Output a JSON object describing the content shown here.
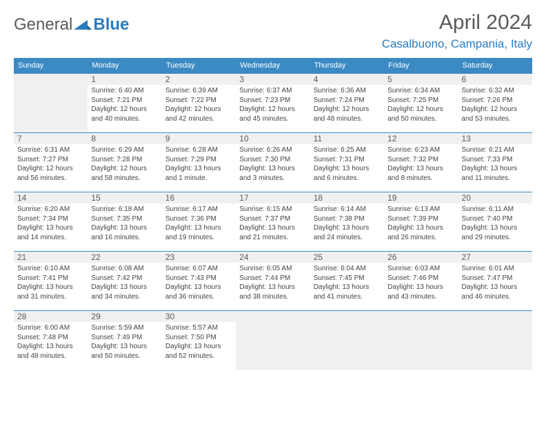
{
  "brand": {
    "part1": "General",
    "part2": "Blue"
  },
  "title": "April 2024",
  "location": "Casalbuono, Campania, Italy",
  "colors": {
    "header_bg": "#3b8ac4",
    "header_text": "#ffffff",
    "brand_gray": "#5a5a5a",
    "brand_blue": "#2b7bbf",
    "cell_border": "#3b8ac4",
    "empty_bg": "#f0f0f0",
    "text": "#444444"
  },
  "calendar": {
    "type": "table",
    "weekdays": [
      "Sunday",
      "Monday",
      "Tuesday",
      "Wednesday",
      "Thursday",
      "Friday",
      "Saturday"
    ],
    "start_offset": 1,
    "days": [
      {
        "n": "1",
        "sunrise": "Sunrise: 6:40 AM",
        "sunset": "Sunset: 7:21 PM",
        "d1": "Daylight: 12 hours",
        "d2": "and 40 minutes."
      },
      {
        "n": "2",
        "sunrise": "Sunrise: 6:39 AM",
        "sunset": "Sunset: 7:22 PM",
        "d1": "Daylight: 12 hours",
        "d2": "and 42 minutes."
      },
      {
        "n": "3",
        "sunrise": "Sunrise: 6:37 AM",
        "sunset": "Sunset: 7:23 PM",
        "d1": "Daylight: 12 hours",
        "d2": "and 45 minutes."
      },
      {
        "n": "4",
        "sunrise": "Sunrise: 6:36 AM",
        "sunset": "Sunset: 7:24 PM",
        "d1": "Daylight: 12 hours",
        "d2": "and 48 minutes."
      },
      {
        "n": "5",
        "sunrise": "Sunrise: 6:34 AM",
        "sunset": "Sunset: 7:25 PM",
        "d1": "Daylight: 12 hours",
        "d2": "and 50 minutes."
      },
      {
        "n": "6",
        "sunrise": "Sunrise: 6:32 AM",
        "sunset": "Sunset: 7:26 PM",
        "d1": "Daylight: 12 hours",
        "d2": "and 53 minutes."
      },
      {
        "n": "7",
        "sunrise": "Sunrise: 6:31 AM",
        "sunset": "Sunset: 7:27 PM",
        "d1": "Daylight: 12 hours",
        "d2": "and 56 minutes."
      },
      {
        "n": "8",
        "sunrise": "Sunrise: 6:29 AM",
        "sunset": "Sunset: 7:28 PM",
        "d1": "Daylight: 12 hours",
        "d2": "and 58 minutes."
      },
      {
        "n": "9",
        "sunrise": "Sunrise: 6:28 AM",
        "sunset": "Sunset: 7:29 PM",
        "d1": "Daylight: 13 hours",
        "d2": "and 1 minute."
      },
      {
        "n": "10",
        "sunrise": "Sunrise: 6:26 AM",
        "sunset": "Sunset: 7:30 PM",
        "d1": "Daylight: 13 hours",
        "d2": "and 3 minutes."
      },
      {
        "n": "11",
        "sunrise": "Sunrise: 6:25 AM",
        "sunset": "Sunset: 7:31 PM",
        "d1": "Daylight: 13 hours",
        "d2": "and 6 minutes."
      },
      {
        "n": "12",
        "sunrise": "Sunrise: 6:23 AM",
        "sunset": "Sunset: 7:32 PM",
        "d1": "Daylight: 13 hours",
        "d2": "and 8 minutes."
      },
      {
        "n": "13",
        "sunrise": "Sunrise: 6:21 AM",
        "sunset": "Sunset: 7:33 PM",
        "d1": "Daylight: 13 hours",
        "d2": "and 11 minutes."
      },
      {
        "n": "14",
        "sunrise": "Sunrise: 6:20 AM",
        "sunset": "Sunset: 7:34 PM",
        "d1": "Daylight: 13 hours",
        "d2": "and 14 minutes."
      },
      {
        "n": "15",
        "sunrise": "Sunrise: 6:18 AM",
        "sunset": "Sunset: 7:35 PM",
        "d1": "Daylight: 13 hours",
        "d2": "and 16 minutes."
      },
      {
        "n": "16",
        "sunrise": "Sunrise: 6:17 AM",
        "sunset": "Sunset: 7:36 PM",
        "d1": "Daylight: 13 hours",
        "d2": "and 19 minutes."
      },
      {
        "n": "17",
        "sunrise": "Sunrise: 6:15 AM",
        "sunset": "Sunset: 7:37 PM",
        "d1": "Daylight: 13 hours",
        "d2": "and 21 minutes."
      },
      {
        "n": "18",
        "sunrise": "Sunrise: 6:14 AM",
        "sunset": "Sunset: 7:38 PM",
        "d1": "Daylight: 13 hours",
        "d2": "and 24 minutes."
      },
      {
        "n": "19",
        "sunrise": "Sunrise: 6:13 AM",
        "sunset": "Sunset: 7:39 PM",
        "d1": "Daylight: 13 hours",
        "d2": "and 26 minutes."
      },
      {
        "n": "20",
        "sunrise": "Sunrise: 6:11 AM",
        "sunset": "Sunset: 7:40 PM",
        "d1": "Daylight: 13 hours",
        "d2": "and 29 minutes."
      },
      {
        "n": "21",
        "sunrise": "Sunrise: 6:10 AM",
        "sunset": "Sunset: 7:41 PM",
        "d1": "Daylight: 13 hours",
        "d2": "and 31 minutes."
      },
      {
        "n": "22",
        "sunrise": "Sunrise: 6:08 AM",
        "sunset": "Sunset: 7:42 PM",
        "d1": "Daylight: 13 hours",
        "d2": "and 34 minutes."
      },
      {
        "n": "23",
        "sunrise": "Sunrise: 6:07 AM",
        "sunset": "Sunset: 7:43 PM",
        "d1": "Daylight: 13 hours",
        "d2": "and 36 minutes."
      },
      {
        "n": "24",
        "sunrise": "Sunrise: 6:05 AM",
        "sunset": "Sunset: 7:44 PM",
        "d1": "Daylight: 13 hours",
        "d2": "and 38 minutes."
      },
      {
        "n": "25",
        "sunrise": "Sunrise: 6:04 AM",
        "sunset": "Sunset: 7:45 PM",
        "d1": "Daylight: 13 hours",
        "d2": "and 41 minutes."
      },
      {
        "n": "26",
        "sunrise": "Sunrise: 6:03 AM",
        "sunset": "Sunset: 7:46 PM",
        "d1": "Daylight: 13 hours",
        "d2": "and 43 minutes."
      },
      {
        "n": "27",
        "sunrise": "Sunrise: 6:01 AM",
        "sunset": "Sunset: 7:47 PM",
        "d1": "Daylight: 13 hours",
        "d2": "and 46 minutes."
      },
      {
        "n": "28",
        "sunrise": "Sunrise: 6:00 AM",
        "sunset": "Sunset: 7:48 PM",
        "d1": "Daylight: 13 hours",
        "d2": "and 48 minutes."
      },
      {
        "n": "29",
        "sunrise": "Sunrise: 5:59 AM",
        "sunset": "Sunset: 7:49 PM",
        "d1": "Daylight: 13 hours",
        "d2": "and 50 minutes."
      },
      {
        "n": "30",
        "sunrise": "Sunrise: 5:57 AM",
        "sunset": "Sunset: 7:50 PM",
        "d1": "Daylight: 13 hours",
        "d2": "and 52 minutes."
      }
    ]
  }
}
